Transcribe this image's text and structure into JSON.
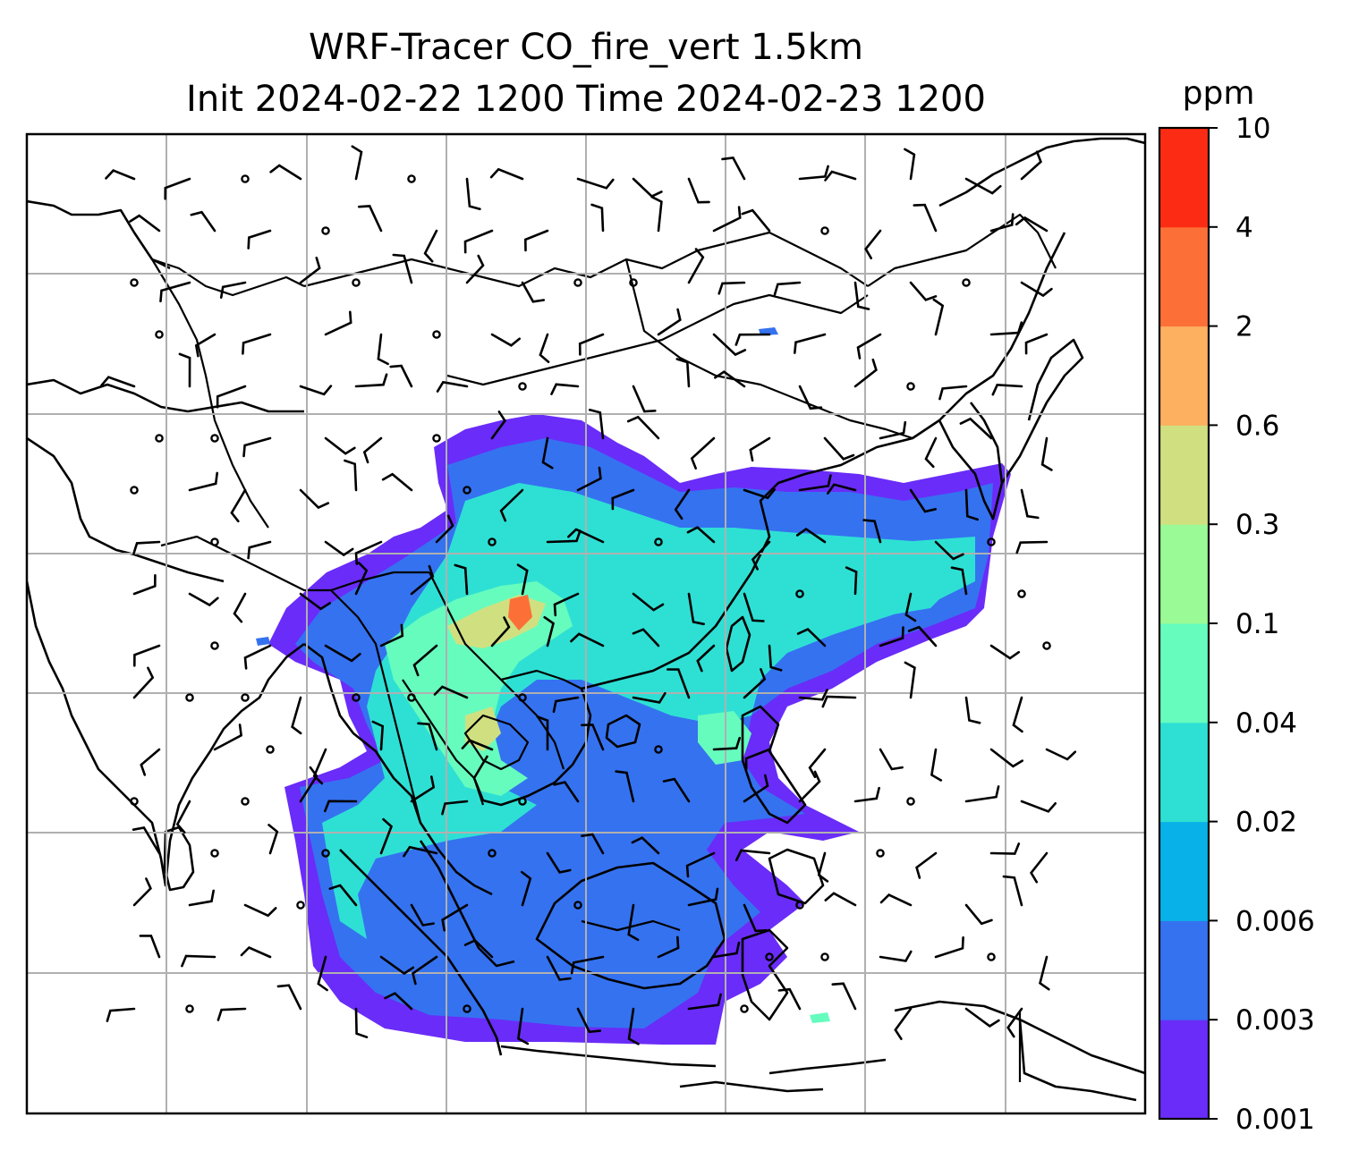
{
  "title_line1": "WRF-Tracer CO_fire_vert 1.5km",
  "title_line2": "Init 2024-02-22 1200 Time 2024-02-23 1200",
  "colorbar": {
    "unit": "ppm",
    "levels": [
      "0.001",
      "0.003",
      "0.006",
      "0.02",
      "0.04",
      "0.1",
      "0.3",
      "0.6",
      "2",
      "4",
      "10"
    ],
    "colors": [
      "#6a2cf8",
      "#3572f0",
      "#08b2e8",
      "#2ee0d4",
      "#66fcbe",
      "#9afa96",
      "#d0e080",
      "#fcb060",
      "#fc7038",
      "#fc2c14"
    ]
  },
  "map": {
    "gridlines": true,
    "field_colors": {
      "low": "#6a2cf8",
      "mid": "#3572f0",
      "cyan": "#2ee0d4",
      "green": "#66fcbe",
      "yellow": "#d0e080",
      "orange": "#fc7038"
    },
    "wind_barbs": "black"
  }
}
